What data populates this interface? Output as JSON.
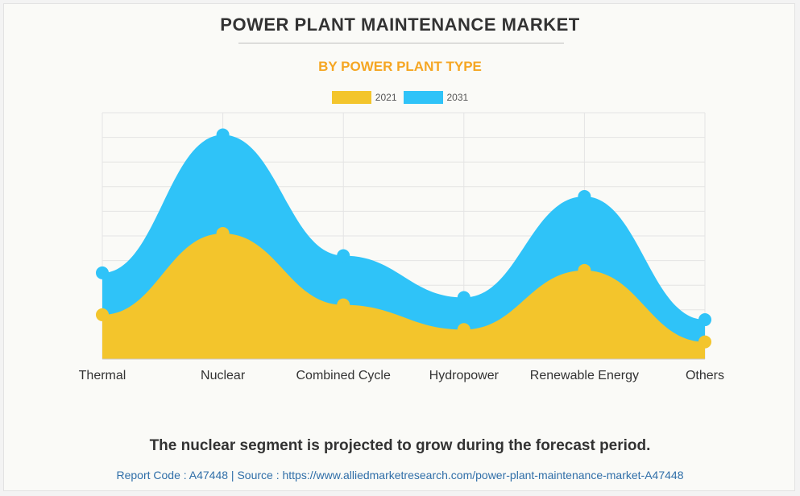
{
  "colors": {
    "y2021": "#f3c52c",
    "y2031": "#2fc3f8"
  },
  "footer": {
    "headline": "The nuclear segment is projected to grow during the forecast period.",
    "source": "Report Code : A47448  |  Source : https://www.alliedmarketresearch.com/power-plant-maintenance-market-A47448"
  },
  "chart_data": {
    "type": "area",
    "title": "POWER PLANT MAINTENANCE MARKET",
    "subtitle": "BY POWER PLANT TYPE",
    "categories": [
      "Thermal",
      "Nuclear",
      "Combined Cycle",
      "Hydropower",
      "Renewable Energy",
      "Others"
    ],
    "series": [
      {
        "name": "2021",
        "values": [
          1.8,
          5.1,
          2.2,
          1.2,
          3.6,
          0.7
        ]
      },
      {
        "name": "2031",
        "values": [
          3.5,
          9.1,
          4.2,
          2.5,
          6.6,
          1.6
        ]
      }
    ],
    "ylim": [
      0,
      10
    ],
    "grid": true,
    "legend": "top",
    "xlabel": "",
    "ylabel": ""
  }
}
